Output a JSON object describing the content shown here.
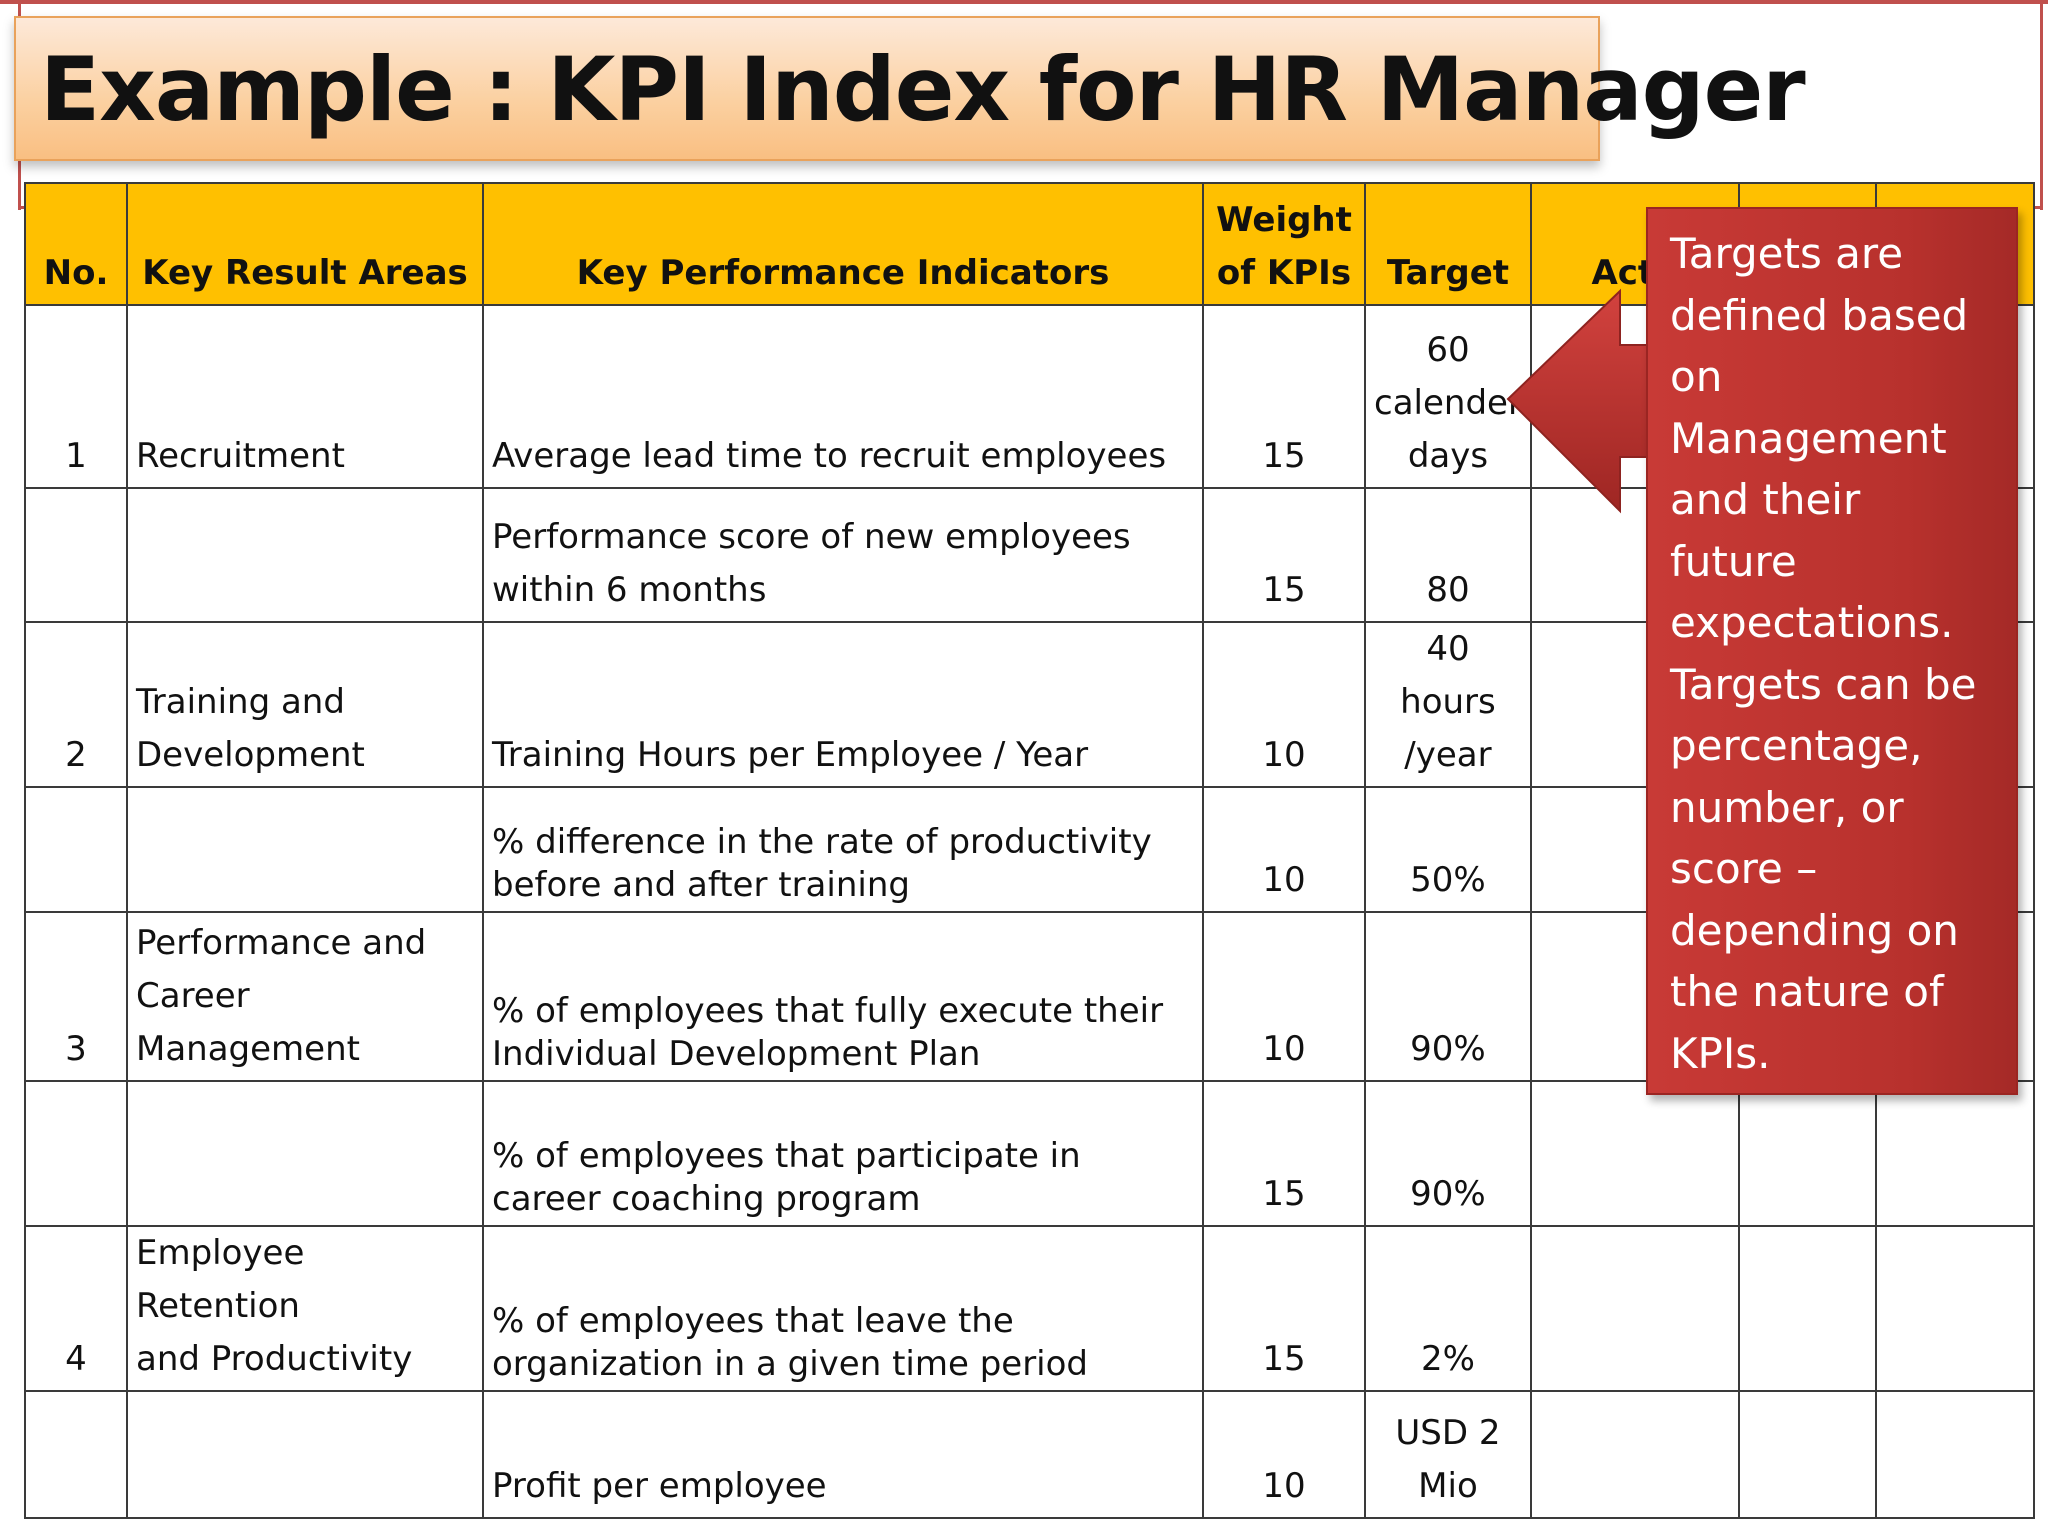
{
  "title": "Example : KPI Index for HR Manager",
  "table": {
    "headers": {
      "no": "No.",
      "kra": "Key Result Areas",
      "kpi": "Key Performance Indicators",
      "weight_line1": "Weight",
      "weight_line2": "of KPIs",
      "target": "Target",
      "actual": "Actu"
    },
    "rows": [
      {
        "no": "1",
        "kra": "Recruitment",
        "kpi": "Average lead time to recruit employees",
        "weight": "15",
        "target_l1": "60",
        "target_l2": "calender",
        "target_l3": "days"
      },
      {
        "no": "",
        "kra": "",
        "kpi_l1": "Performance score of new employees",
        "kpi_l2": "within 6 months",
        "weight": "15",
        "target": "80"
      },
      {
        "no": "2",
        "kra_l1": "Training and",
        "kra_l2": "Development",
        "kpi": "Training Hours per Employee / Year",
        "weight": "10",
        "target_l1": "40 hours",
        "target_l2": "/year"
      },
      {
        "no": "",
        "kra": "",
        "kpi_l1": "% difference in the rate of productivity",
        "kpi_l2": "before and after training",
        "weight": "10",
        "target": "50%"
      },
      {
        "no": "3",
        "kra_l1": "Performance and",
        "kra_l2": "Career",
        "kra_l3": "Management",
        "kpi_l1": "% of employees that fully execute their",
        "kpi_l2": "Individual Development Plan",
        "weight": "10",
        "target": "90%"
      },
      {
        "no": "",
        "kra": "",
        "kpi_l1": "% of employees that participate in",
        "kpi_l2": "career coaching program",
        "weight": "15",
        "target": "90%"
      },
      {
        "no": "4",
        "kra_l1": "Employee Retention",
        "kra_l2": "and Productivity",
        "kpi_l1": "% of employees that leave the",
        "kpi_l2": "organization in a given time period",
        "weight": "15",
        "target": "2%"
      },
      {
        "no": "",
        "kra": "",
        "kpi": "Profit per employee",
        "weight": "10",
        "target_l1": "USD 2",
        "target_l2": "Mio"
      }
    ]
  },
  "callout": {
    "lines": [
      "Targets are",
      "defined based",
      "on",
      "Management",
      "and their",
      "future",
      "expectations.",
      "Targets can be",
      "percentage,",
      "number,  or",
      "score –",
      "depending on",
      "the nature of",
      "KPIs."
    ]
  },
  "colors": {
    "header_fill": "#ffc000",
    "callout_fill": "#c0392b",
    "title_fill": "#fbd0a0",
    "frame": "#c0504d"
  }
}
